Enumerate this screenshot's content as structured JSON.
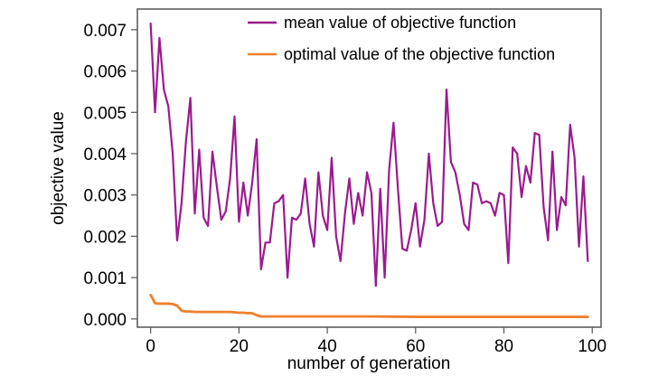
{
  "chart_data": {
    "type": "line",
    "xlabel": "number of generation",
    "ylabel": "objective value",
    "xlim": [
      -3,
      102
    ],
    "ylim": [
      -0.0002,
      0.0075
    ],
    "xticks": [
      0,
      20,
      40,
      60,
      80,
      100
    ],
    "yticks": [
      0.0,
      0.001,
      0.002,
      0.003,
      0.004,
      0.005,
      0.006,
      0.007
    ],
    "xtick_labels": [
      "0",
      "20",
      "40",
      "60",
      "80",
      "100"
    ],
    "ytick_labels": [
      "0.000",
      "0.001",
      "0.002",
      "0.003",
      "0.004",
      "0.005",
      "0.006",
      "0.007"
    ],
    "grid": false,
    "legend_position": "top-right",
    "series": [
      {
        "name": "mean value of objective function",
        "color": "#9b1a8f",
        "x": [
          0,
          1,
          2,
          3,
          4,
          5,
          6,
          7,
          8,
          9,
          10,
          11,
          12,
          13,
          14,
          15,
          16,
          17,
          18,
          19,
          20,
          21,
          22,
          23,
          24,
          25,
          26,
          27,
          28,
          29,
          30,
          31,
          32,
          33,
          34,
          35,
          36,
          37,
          38,
          39,
          40,
          41,
          42,
          43,
          44,
          45,
          46,
          47,
          48,
          49,
          50,
          51,
          52,
          53,
          54,
          55,
          56,
          57,
          58,
          59,
          60,
          61,
          62,
          63,
          64,
          65,
          66,
          67,
          68,
          69,
          70,
          71,
          72,
          73,
          74,
          75,
          76,
          77,
          78,
          79,
          80,
          81,
          82,
          83,
          84,
          85,
          86,
          87,
          88,
          89,
          90,
          91,
          92,
          93,
          94,
          95,
          96,
          97,
          98,
          99
        ],
        "values": [
          0.00715,
          0.005,
          0.0068,
          0.00555,
          0.00515,
          0.004,
          0.0019,
          0.0028,
          0.0043,
          0.00535,
          0.00255,
          0.0041,
          0.00245,
          0.00225,
          0.00405,
          0.0032,
          0.0024,
          0.0026,
          0.0034,
          0.0049,
          0.00235,
          0.0033,
          0.0025,
          0.0033,
          0.00435,
          0.0012,
          0.00185,
          0.00185,
          0.0028,
          0.00285,
          0.003,
          0.001,
          0.00245,
          0.0024,
          0.00255,
          0.0034,
          0.0023,
          0.00175,
          0.00355,
          0.0025,
          0.00215,
          0.0039,
          0.002,
          0.0014,
          0.00255,
          0.0034,
          0.0023,
          0.00305,
          0.0025,
          0.00355,
          0.00305,
          0.0008,
          0.00315,
          0.001,
          0.0036,
          0.00475,
          0.00315,
          0.0017,
          0.00165,
          0.00215,
          0.0028,
          0.00175,
          0.0024,
          0.004,
          0.0028,
          0.00225,
          0.00235,
          0.00555,
          0.0038,
          0.00355,
          0.003,
          0.0023,
          0.00215,
          0.0033,
          0.00325,
          0.0028,
          0.00285,
          0.0028,
          0.0025,
          0.00305,
          0.003,
          0.00135,
          0.00415,
          0.004,
          0.00295,
          0.0037,
          0.0033,
          0.0045,
          0.00445,
          0.0027,
          0.0019,
          0.00405,
          0.00215,
          0.00295,
          0.00275,
          0.0047,
          0.0039,
          0.00175,
          0.00345,
          0.0014
        ]
      },
      {
        "name": "optimal value of the objective function",
        "color": "#f07f2e",
        "x": [
          0,
          1,
          2,
          3,
          4,
          5,
          6,
          7,
          8,
          9,
          10,
          12,
          14,
          16,
          18,
          19,
          20,
          21,
          22,
          23,
          24,
          25,
          26,
          30,
          40,
          50,
          60,
          70,
          80,
          90,
          99
        ],
        "values": [
          0.00058,
          0.00038,
          0.00037,
          0.00037,
          0.00037,
          0.00036,
          0.00032,
          0.0002,
          0.00018,
          0.00018,
          0.00017,
          0.00017,
          0.00017,
          0.00017,
          0.00017,
          0.00016,
          0.00015,
          0.00015,
          0.00014,
          0.00014,
          9e-05,
          6e-05,
          6e-05,
          6e-05,
          6e-05,
          6e-05,
          5e-05,
          5e-05,
          5e-05,
          5e-05,
          5e-05
        ]
      }
    ]
  }
}
